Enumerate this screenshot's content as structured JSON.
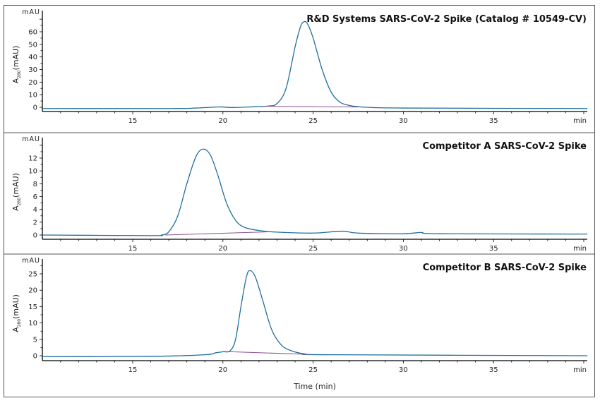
{
  "chart_data": [
    {
      "type": "line",
      "title": "R&D Systems SARS-CoV-2 Spike (Catalog # 10549-CV)",
      "ylabel": "A280(mAU)",
      "ylabel_main": "A",
      "ylabel_sub": "280",
      "ylabel_unit": "(mAU)",
      "yunit": "mAU",
      "xunit": "min",
      "xlim": [
        10,
        40.2
      ],
      "ylim": [
        -3,
        75
      ],
      "xticks": [
        15,
        20,
        25,
        30,
        35
      ],
      "yticks": [
        0,
        10,
        20,
        30,
        40,
        50,
        60
      ],
      "ytick_labels": [
        "0",
        "10",
        "20",
        "30",
        "40",
        "50",
        "60"
      ],
      "xtick_labels": [
        "15",
        "20",
        "25",
        "30",
        "35"
      ],
      "grid": false,
      "series": [
        {
          "role": "trace",
          "color": "#1f6f9f",
          "x": [
            10,
            17,
            18.5,
            19.8,
            20.5,
            21.5,
            22.5,
            23,
            23.5,
            24,
            24.3,
            24.5,
            24.7,
            25,
            25.5,
            26,
            26.5,
            27,
            27.5,
            28,
            30,
            40.2
          ],
          "y": [
            -1,
            -1,
            -0.6,
            0.3,
            -0.2,
            0.3,
            1,
            3,
            15,
            48,
            64,
            68,
            66,
            55,
            30,
            12,
            4,
            1.5,
            0.5,
            0,
            -0.6,
            -1
          ]
        },
        {
          "role": "baseline",
          "color": "#8b4f8f",
          "x": [
            22.3,
            27.5
          ],
          "y": [
            0.8,
            0.2
          ]
        }
      ]
    },
    {
      "type": "line",
      "title": "Competitor A SARS-CoV-2 Spike",
      "ylabel": "A280(mAU)",
      "ylabel_main": "A",
      "ylabel_sub": "280",
      "ylabel_unit": "(mAU)",
      "yunit": "mAU",
      "xunit": "min",
      "xlim": [
        10,
        40.2
      ],
      "ylim": [
        -0.7,
        14.8
      ],
      "xticks": [
        15,
        20,
        25,
        30,
        35
      ],
      "yticks": [
        0,
        2,
        4,
        6,
        8,
        10,
        12
      ],
      "ytick_labels": [
        "0",
        "2",
        "4",
        "6",
        "8",
        "10",
        "12"
      ],
      "xtick_labels": [
        "15",
        "20",
        "25",
        "30",
        "35"
      ],
      "grid": false,
      "series": [
        {
          "role": "trace",
          "color": "#1f6f9f",
          "x": [
            10,
            16,
            16.6,
            17,
            17.5,
            18,
            18.5,
            18.9,
            19.3,
            19.7,
            20.2,
            20.7,
            21.2,
            22,
            23,
            25,
            26.6,
            27.5,
            30,
            31,
            32,
            40.2
          ],
          "y": [
            0,
            -0.1,
            0,
            0.5,
            3,
            8,
            12.2,
            13.4,
            12.5,
            9.5,
            5,
            2.3,
            1.2,
            0.7,
            0.45,
            0.3,
            0.6,
            0.3,
            0.2,
            0.4,
            0.2,
            0.15
          ]
        },
        {
          "role": "baseline",
          "color": "#8b4f8f",
          "x": [
            16.8,
            22.5
          ],
          "y": [
            0,
            0.5
          ]
        }
      ]
    },
    {
      "type": "line",
      "title": "Competitor B SARS-CoV-2 Spike",
      "ylabel": "A280(mAU)",
      "ylabel_main": "A",
      "ylabel_sub": "280",
      "ylabel_unit": "(mAU)",
      "yunit": "mAU",
      "xlabel": "Time (min)",
      "xunit": "min",
      "xlim": [
        10,
        40.2
      ],
      "ylim": [
        -1.5,
        29
      ],
      "xticks": [
        15,
        20,
        25,
        30,
        35
      ],
      "yticks": [
        0,
        5,
        10,
        15,
        20,
        25
      ],
      "ytick_labels": [
        "0",
        "5",
        "10",
        "15",
        "20",
        "25"
      ],
      "xtick_labels": [
        "15",
        "20",
        "25",
        "30",
        "35"
      ],
      "grid": false,
      "series": [
        {
          "role": "trace",
          "color": "#1f6f9f",
          "x": [
            10,
            16,
            19,
            19.6,
            20,
            20.4,
            20.7,
            21,
            21.3,
            21.5,
            21.8,
            22.2,
            22.7,
            23.2,
            23.7,
            24.5,
            26,
            40.2
          ],
          "y": [
            -0.3,
            -0.2,
            0.3,
            0.9,
            1.2,
            1.5,
            5,
            15,
            24,
            26,
            24,
            17,
            8,
            3.5,
            1.7,
            0.6,
            0.3,
            0
          ]
        },
        {
          "role": "baseline",
          "color": "#8b4f8f",
          "x": [
            20,
            24.8
          ],
          "y": [
            1.3,
            0.4
          ]
        }
      ]
    }
  ]
}
